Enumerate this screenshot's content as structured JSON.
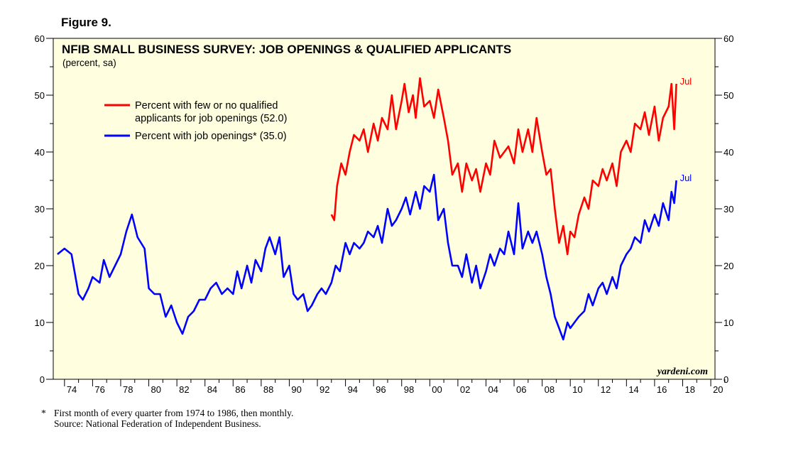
{
  "figure_label": "Figure 9.",
  "footnote": {
    "marker": "*",
    "note": "First month of every quarter from 1974 to 1986, then monthly.",
    "source": "Source: National Federation of Independent Business."
  },
  "colors": {
    "background": "#ffffe0",
    "red": "#ff0000",
    "blue": "#0000ff",
    "axis": "#000000"
  },
  "chart_data": {
    "type": "line",
    "title": "NFIB SMALL BUSINESS SURVEY: JOB OPENINGS & QUALIFIED APPLICANTS",
    "subtitle": "(percent, sa)",
    "watermark": "yardeni.com",
    "ylim": [
      0,
      60
    ],
    "y_ticks": [
      0,
      10,
      20,
      30,
      40,
      50,
      60
    ],
    "xlim": [
      1973.2,
      2020.3
    ],
    "x_ticks": [
      1974,
      1976,
      1978,
      1980,
      1982,
      1984,
      1986,
      1988,
      1990,
      1992,
      1994,
      1996,
      1998,
      2000,
      2002,
      2004,
      2006,
      2008,
      2010,
      2012,
      2014,
      2016,
      2018,
      2020
    ],
    "x_tick_labels": [
      "74",
      "76",
      "78",
      "80",
      "82",
      "84",
      "86",
      "88",
      "90",
      "92",
      "94",
      "96",
      "98",
      "00",
      "02",
      "04",
      "06",
      "08",
      "10",
      "12",
      "14",
      "16",
      "18",
      "20"
    ],
    "series": [
      {
        "name": "Percent with few or no qualified applicants for job openings (52.0)",
        "legend_line1": "Percent with few or no qualified",
        "legend_line2": "applicants for job openings (52.0)",
        "color": "#ff0000",
        "end_label": "Jul",
        "x": [
          1993.0,
          1993.2,
          1993.4,
          1993.7,
          1994.0,
          1994.3,
          1994.6,
          1995.0,
          1995.3,
          1995.6,
          1996.0,
          1996.3,
          1996.6,
          1997.0,
          1997.3,
          1997.6,
          1998.0,
          1998.2,
          1998.5,
          1998.8,
          1999.0,
          1999.3,
          1999.6,
          2000.0,
          2000.3,
          2000.6,
          2001.0,
          2001.3,
          2001.6,
          2002.0,
          2002.3,
          2002.6,
          2003.0,
          2003.3,
          2003.6,
          2004.0,
          2004.3,
          2004.6,
          2005.0,
          2005.3,
          2005.6,
          2006.0,
          2006.3,
          2006.6,
          2007.0,
          2007.3,
          2007.6,
          2008.0,
          2008.3,
          2008.6,
          2008.9,
          2009.2,
          2009.5,
          2009.8,
          2010.0,
          2010.3,
          2010.6,
          2011.0,
          2011.3,
          2011.6,
          2012.0,
          2012.3,
          2012.6,
          2013.0,
          2013.3,
          2013.6,
          2014.0,
          2014.3,
          2014.6,
          2015.0,
          2015.3,
          2015.6,
          2016.0,
          2016.3,
          2016.6,
          2017.0,
          2017.2,
          2017.4,
          2017.55
        ],
        "y": [
          29,
          28,
          34,
          38,
          36,
          40,
          43,
          42,
          44,
          40,
          45,
          42,
          46,
          44,
          50,
          44,
          49,
          52,
          47,
          50,
          46,
          53,
          48,
          49,
          46,
          51,
          46,
          42,
          36,
          38,
          33,
          38,
          35,
          37,
          33,
          38,
          36,
          42,
          39,
          40,
          41,
          38,
          44,
          40,
          44,
          40,
          46,
          40,
          36,
          37,
          30,
          24,
          27,
          22,
          26,
          25,
          29,
          32,
          30,
          35,
          34,
          37,
          35,
          38,
          34,
          40,
          42,
          40,
          45,
          44,
          47,
          43,
          48,
          42,
          46,
          48,
          52,
          44,
          52
        ]
      },
      {
        "name": "Percent with job openings* (35.0)",
        "legend_line1": "Percent with job openings* (35.0)",
        "color": "#0000ff",
        "end_label": "Jul",
        "x": [
          1973.5,
          1974.0,
          1974.5,
          1975.0,
          1975.3,
          1975.7,
          1976.0,
          1976.5,
          1976.8,
          1977.2,
          1977.6,
          1978.0,
          1978.4,
          1978.8,
          1979.2,
          1979.7,
          1980.0,
          1980.4,
          1980.8,
          1981.2,
          1981.6,
          1982.0,
          1982.4,
          1982.8,
          1983.2,
          1983.6,
          1984.0,
          1984.4,
          1984.8,
          1985.2,
          1985.6,
          1986.0,
          1986.3,
          1986.6,
          1987.0,
          1987.3,
          1987.6,
          1988.0,
          1988.3,
          1988.6,
          1989.0,
          1989.3,
          1989.6,
          1990.0,
          1990.3,
          1990.6,
          1991.0,
          1991.3,
          1991.6,
          1992.0,
          1992.3,
          1992.6,
          1993.0,
          1993.3,
          1993.6,
          1994.0,
          1994.3,
          1994.6,
          1995.0,
          1995.3,
          1995.6,
          1996.0,
          1996.3,
          1996.6,
          1997.0,
          1997.3,
          1997.6,
          1998.0,
          1998.3,
          1998.6,
          1999.0,
          1999.3,
          1999.6,
          2000.0,
          2000.3,
          2000.6,
          2001.0,
          2001.3,
          2001.6,
          2002.0,
          2002.3,
          2002.6,
          2003.0,
          2003.3,
          2003.6,
          2004.0,
          2004.3,
          2004.6,
          2005.0,
          2005.3,
          2005.6,
          2006.0,
          2006.3,
          2006.6,
          2007.0,
          2007.3,
          2007.6,
          2008.0,
          2008.3,
          2008.6,
          2008.9,
          2009.2,
          2009.5,
          2009.8,
          2010.0,
          2010.3,
          2010.6,
          2011.0,
          2011.3,
          2011.6,
          2012.0,
          2012.3,
          2012.6,
          2013.0,
          2013.3,
          2013.6,
          2014.0,
          2014.3,
          2014.6,
          2015.0,
          2015.3,
          2015.6,
          2016.0,
          2016.3,
          2016.6,
          2017.0,
          2017.2,
          2017.4,
          2017.55
        ],
        "y": [
          22,
          23,
          22,
          15,
          14,
          16,
          18,
          17,
          21,
          18,
          20,
          22,
          26,
          29,
          25,
          23,
          16,
          15,
          15,
          11,
          13,
          10,
          8,
          11,
          12,
          14,
          14,
          16,
          17,
          15,
          16,
          15,
          19,
          16,
          20,
          17,
          21,
          19,
          23,
          25,
          22,
          25,
          18,
          20,
          15,
          14,
          15,
          12,
          13,
          15,
          16,
          15,
          17,
          20,
          19,
          24,
          22,
          24,
          23,
          24,
          26,
          25,
          27,
          24,
          30,
          27,
          28,
          30,
          32,
          29,
          33,
          30,
          34,
          33,
          36,
          28,
          30,
          24,
          20,
          20,
          18,
          22,
          17,
          20,
          16,
          19,
          22,
          20,
          23,
          22,
          26,
          22,
          31,
          23,
          26,
          24,
          26,
          22,
          18,
          15,
          11,
          9,
          7,
          10,
          9,
          10,
          11,
          12,
          15,
          13,
          16,
          17,
          15,
          18,
          16,
          20,
          22,
          23,
          25,
          24,
          28,
          26,
          29,
          27,
          31,
          28,
          33,
          31,
          35
        ]
      }
    ],
    "legend_position": "upper-left"
  }
}
